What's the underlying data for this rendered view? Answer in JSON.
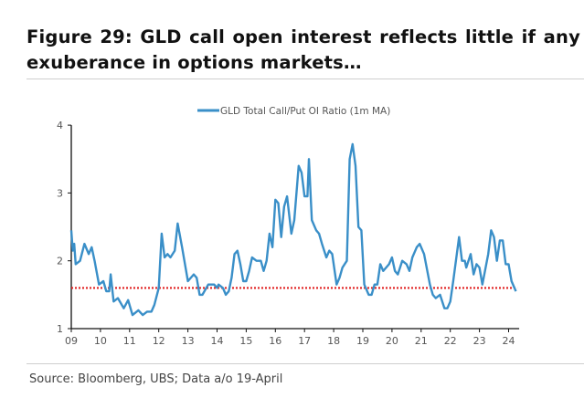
{
  "title_line1": "Figure 29: GLD call open interest reflects little if any",
  "title_line2": "exuberance in options markets…",
  "source": "Source: Bloomberg, UBS; Data a/o 19-April",
  "chart_data": {
    "type": "line",
    "title": "",
    "xlabel": "",
    "ylabel": "",
    "ylim": [
      1,
      4
    ],
    "yticks": [
      "1",
      "2",
      "3",
      "4"
    ],
    "xlim": [
      2009,
      2024.3
    ],
    "xticks": [
      "09",
      "10",
      "11",
      "12",
      "13",
      "14",
      "15",
      "16",
      "17",
      "18",
      "19",
      "20",
      "21",
      "22",
      "23",
      "24"
    ],
    "legend": {
      "label": "GLD Total Call/Put OI Ratio (1m MA)",
      "placement": "top-center"
    },
    "reference_line": {
      "value": 1.6,
      "color": "#e02020",
      "style": "dotted"
    },
    "series": [
      {
        "name": "GLD Total Call/Put OI Ratio (1m MA)",
        "color": "#3a8fc8",
        "points": [
          [
            2009.0,
            2.45
          ],
          [
            2009.05,
            2.15
          ],
          [
            2009.1,
            2.25
          ],
          [
            2009.15,
            1.95
          ],
          [
            2009.3,
            2.0
          ],
          [
            2009.45,
            2.25
          ],
          [
            2009.6,
            2.1
          ],
          [
            2009.7,
            2.2
          ],
          [
            2009.8,
            2.0
          ],
          [
            2009.95,
            1.65
          ],
          [
            2010.1,
            1.7
          ],
          [
            2010.2,
            1.55
          ],
          [
            2010.3,
            1.55
          ],
          [
            2010.35,
            1.8
          ],
          [
            2010.45,
            1.4
          ],
          [
            2010.6,
            1.45
          ],
          [
            2010.8,
            1.3
          ],
          [
            2010.95,
            1.42
          ],
          [
            2011.1,
            1.2
          ],
          [
            2011.3,
            1.27
          ],
          [
            2011.45,
            1.2
          ],
          [
            2011.6,
            1.25
          ],
          [
            2011.75,
            1.25
          ],
          [
            2011.85,
            1.35
          ],
          [
            2012.0,
            1.6
          ],
          [
            2012.1,
            2.4
          ],
          [
            2012.2,
            2.05
          ],
          [
            2012.3,
            2.1
          ],
          [
            2012.4,
            2.05
          ],
          [
            2012.55,
            2.15
          ],
          [
            2012.65,
            2.55
          ],
          [
            2012.8,
            2.2
          ],
          [
            2012.9,
            1.95
          ],
          [
            2013.0,
            1.7
          ],
          [
            2013.2,
            1.8
          ],
          [
            2013.3,
            1.75
          ],
          [
            2013.4,
            1.5
          ],
          [
            2013.5,
            1.5
          ],
          [
            2013.7,
            1.65
          ],
          [
            2013.9,
            1.65
          ],
          [
            2014.0,
            1.6
          ],
          [
            2014.05,
            1.65
          ],
          [
            2014.2,
            1.6
          ],
          [
            2014.3,
            1.5
          ],
          [
            2014.4,
            1.55
          ],
          [
            2014.5,
            1.75
          ],
          [
            2014.6,
            2.1
          ],
          [
            2014.7,
            2.15
          ],
          [
            2014.8,
            1.95
          ],
          [
            2014.9,
            1.7
          ],
          [
            2015.0,
            1.7
          ],
          [
            2015.1,
            1.85
          ],
          [
            2015.2,
            2.05
          ],
          [
            2015.35,
            2.0
          ],
          [
            2015.5,
            2.0
          ],
          [
            2015.6,
            1.85
          ],
          [
            2015.7,
            2.0
          ],
          [
            2015.8,
            2.4
          ],
          [
            2015.9,
            2.2
          ],
          [
            2016.0,
            2.9
          ],
          [
            2016.1,
            2.85
          ],
          [
            2016.2,
            2.35
          ],
          [
            2016.3,
            2.8
          ],
          [
            2016.4,
            2.95
          ],
          [
            2016.55,
            2.4
          ],
          [
            2016.65,
            2.6
          ],
          [
            2016.8,
            3.4
          ],
          [
            2016.9,
            3.3
          ],
          [
            2017.0,
            2.95
          ],
          [
            2017.1,
            2.95
          ],
          [
            2017.15,
            3.5
          ],
          [
            2017.25,
            2.6
          ],
          [
            2017.4,
            2.45
          ],
          [
            2017.5,
            2.4
          ],
          [
            2017.6,
            2.25
          ],
          [
            2017.75,
            2.05
          ],
          [
            2017.85,
            2.15
          ],
          [
            2017.95,
            2.1
          ],
          [
            2018.1,
            1.65
          ],
          [
            2018.2,
            1.75
          ],
          [
            2018.3,
            1.9
          ],
          [
            2018.45,
            2.0
          ],
          [
            2018.55,
            3.5
          ],
          [
            2018.65,
            3.72
          ],
          [
            2018.75,
            3.4
          ],
          [
            2018.85,
            2.5
          ],
          [
            2018.95,
            2.45
          ],
          [
            2019.05,
            1.65
          ],
          [
            2019.2,
            1.5
          ],
          [
            2019.3,
            1.5
          ],
          [
            2019.4,
            1.65
          ],
          [
            2019.5,
            1.65
          ],
          [
            2019.6,
            1.95
          ],
          [
            2019.7,
            1.85
          ],
          [
            2019.8,
            1.9
          ],
          [
            2019.9,
            1.95
          ],
          [
            2020.0,
            2.05
          ],
          [
            2020.1,
            1.85
          ],
          [
            2020.2,
            1.8
          ],
          [
            2020.35,
            2.0
          ],
          [
            2020.5,
            1.95
          ],
          [
            2020.6,
            1.85
          ],
          [
            2020.7,
            2.05
          ],
          [
            2020.85,
            2.2
          ],
          [
            2020.95,
            2.25
          ],
          [
            2021.1,
            2.1
          ],
          [
            2021.3,
            1.65
          ],
          [
            2021.4,
            1.5
          ],
          [
            2021.5,
            1.45
          ],
          [
            2021.65,
            1.5
          ],
          [
            2021.8,
            1.3
          ],
          [
            2021.9,
            1.3
          ],
          [
            2022.0,
            1.4
          ],
          [
            2022.1,
            1.7
          ],
          [
            2022.3,
            2.35
          ],
          [
            2022.4,
            2.0
          ],
          [
            2022.5,
            2.0
          ],
          [
            2022.55,
            1.9
          ],
          [
            2022.7,
            2.1
          ],
          [
            2022.8,
            1.8
          ],
          [
            2022.9,
            1.95
          ],
          [
            2023.0,
            1.9
          ],
          [
            2023.1,
            1.65
          ],
          [
            2023.3,
            2.1
          ],
          [
            2023.4,
            2.45
          ],
          [
            2023.5,
            2.35
          ],
          [
            2023.6,
            2.0
          ],
          [
            2023.7,
            2.3
          ],
          [
            2023.8,
            2.3
          ],
          [
            2023.9,
            1.95
          ],
          [
            2024.0,
            1.95
          ],
          [
            2024.1,
            1.7
          ],
          [
            2024.25,
            1.55
          ]
        ]
      }
    ]
  }
}
